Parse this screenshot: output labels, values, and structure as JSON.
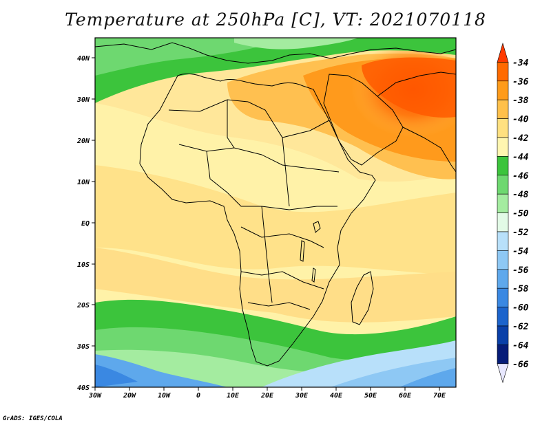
{
  "title": "Temperature at 250hPa [C], VT: 2021070118",
  "footer": "GrADS: IGES/COLA",
  "map": {
    "lon_range": [
      -30,
      75
    ],
    "lat_range": [
      -40,
      45
    ],
    "x_ticks": [
      "30W",
      "20W",
      "10W",
      "0",
      "10E",
      "20E",
      "30E",
      "40E",
      "50E",
      "60E",
      "70E"
    ],
    "y_ticks": [
      "40N",
      "30N",
      "20N",
      "10N",
      "EQ",
      "10S",
      "20S",
      "30S",
      "40S"
    ]
  },
  "colorbar": {
    "levels": [
      "-34",
      "-36",
      "-38",
      "-40",
      "-42",
      "-44",
      "-46",
      "-48",
      "-50",
      "-52",
      "-54",
      "-56",
      "-58",
      "-60",
      "-62",
      "-64",
      "-66"
    ],
    "colors": [
      "#ff3a00",
      "#ff6a00",
      "#ff9b1a",
      "#ffc04a",
      "#ffe080",
      "#fff6b0",
      "#3cc43c",
      "#6ed870",
      "#a4eca0",
      "#e2fae6",
      "#b8e0fa",
      "#8ec8f4",
      "#5ea8ec",
      "#3a88e2",
      "#1c64cc",
      "#0a40a8",
      "#061c78",
      "#e8e8ff"
    ]
  }
}
